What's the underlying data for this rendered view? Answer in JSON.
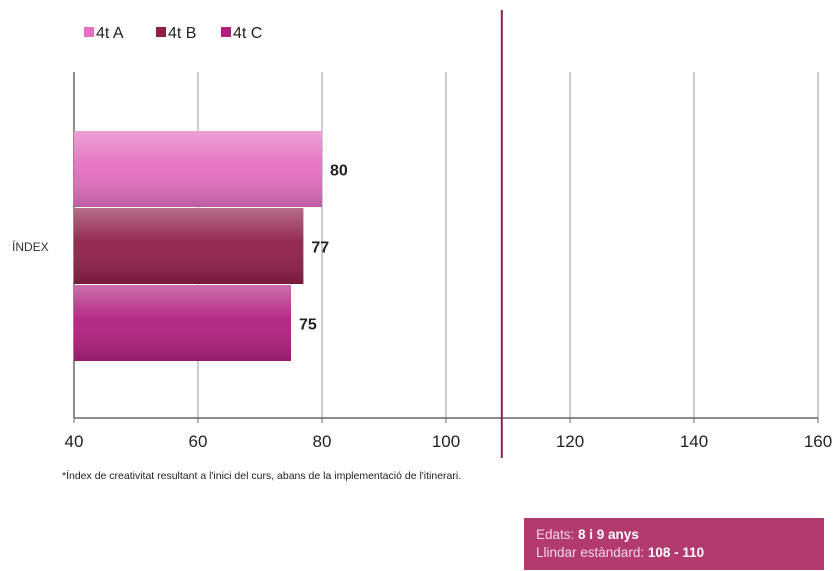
{
  "chart_data": {
    "type": "bar",
    "orientation": "horizontal",
    "categories": [
      "ÍNDEX"
    ],
    "series": [
      {
        "name": "4t A",
        "values": [
          80
        ],
        "color": "#e46fc0"
      },
      {
        "name": "4t B",
        "values": [
          77
        ],
        "color": "#8f1f47"
      },
      {
        "name": "4t C",
        "values": [
          75
        ],
        "color": "#b1207f"
      }
    ],
    "data_labels": [
      "80",
      "77",
      "75"
    ],
    "xlim": [
      40,
      160
    ],
    "x_ticks": [
      40,
      60,
      80,
      100,
      120,
      140,
      160
    ],
    "threshold_line": {
      "value": 109,
      "color": "#8c1f55"
    },
    "grid": "vertical",
    "legend_position": "top-left"
  },
  "footnote": "*Índex de creativitat resultant a l'inici del curs, abans de la implementació de l'itinerari.",
  "info_box": {
    "ages_label": "Edats: ",
    "ages_value": "8 i 9 anys",
    "threshold_label": "Llindar estàndard: ",
    "threshold_value": "108 - 110",
    "background": "#b23a6e"
  }
}
